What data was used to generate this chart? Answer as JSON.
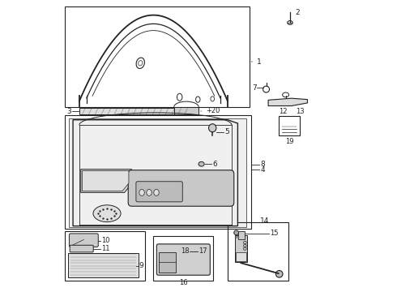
{
  "bg_color": "#ffffff",
  "line_color": "#222222",
  "gray1": "#dddddd",
  "gray2": "#cccccc",
  "gray3": "#e0e0e0",
  "gray4": "#bbbbbb",
  "gray5": "#d8d8d8",
  "gray6": "#c8c8c8",
  "gray7": "#d0d0d0",
  "gray8": "#aaaaaa",
  "gray9": "#f0f0f0"
}
